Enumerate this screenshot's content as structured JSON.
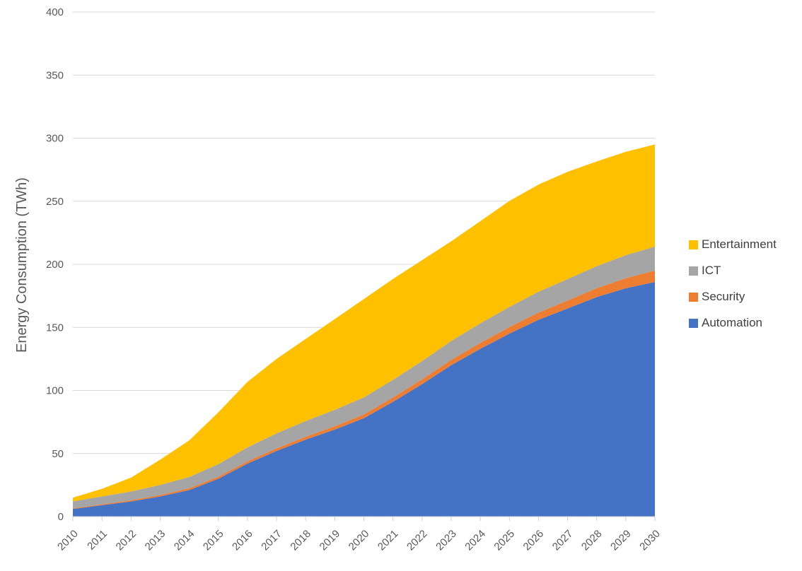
{
  "chart_data": {
    "type": "area",
    "stacked": true,
    "title": "",
    "xlabel": "",
    "ylabel": "Energy Consumption (TWh)",
    "ylim": [
      0,
      400
    ],
    "ytick_step": 50,
    "grid": "horizontal-only",
    "legend_position": "right",
    "categories": [
      "2010",
      "2011",
      "2012",
      "2013",
      "2014",
      "2015",
      "2016",
      "2017",
      "2018",
      "2019",
      "2020",
      "2021",
      "2022",
      "2023",
      "2024",
      "2025",
      "2026",
      "2027",
      "2028",
      "2029",
      "2030"
    ],
    "series": [
      {
        "name": "Automation",
        "color": "#4472C4",
        "values": [
          6,
          9,
          12,
          16,
          21,
          30,
          42,
          52,
          61,
          69,
          78,
          91,
          105,
          120,
          133,
          145,
          156,
          165,
          174,
          181,
          186
        ]
      },
      {
        "name": "Security",
        "color": "#ED7D31",
        "values": [
          0.5,
          0.7,
          0.9,
          1.1,
          1.4,
          1.6,
          1.8,
          2,
          2.3,
          2.6,
          3,
          3.4,
          3.8,
          4.2,
          4.7,
          5.2,
          5.7,
          6.3,
          7,
          8,
          9
        ]
      },
      {
        "name": "ICT",
        "color": "#A5A5A5",
        "values": [
          5.5,
          6.3,
          7,
          8,
          9,
          10,
          11,
          12,
          12.5,
          13,
          13.5,
          14,
          14.5,
          15,
          15.5,
          16,
          16.5,
          17,
          17.5,
          18.2,
          19
        ]
      },
      {
        "name": "Entertainment",
        "color": "#FFC000",
        "values": [
          3,
          6,
          11,
          20,
          29,
          41,
          52,
          59,
          65,
          72,
          78,
          80,
          80,
          79,
          81,
          84,
          85,
          85,
          83,
          82,
          81
        ]
      }
    ],
    "ytick_labels": [
      "0",
      "50",
      "100",
      "150",
      "200",
      "250",
      "300",
      "350",
      "400"
    ]
  },
  "colors": {
    "background": "#FFFFFF",
    "gridline": "#D9D9D9",
    "axis_line": "#D0D0D0",
    "axis_text": "#595959",
    "legend_text": "#404040"
  }
}
